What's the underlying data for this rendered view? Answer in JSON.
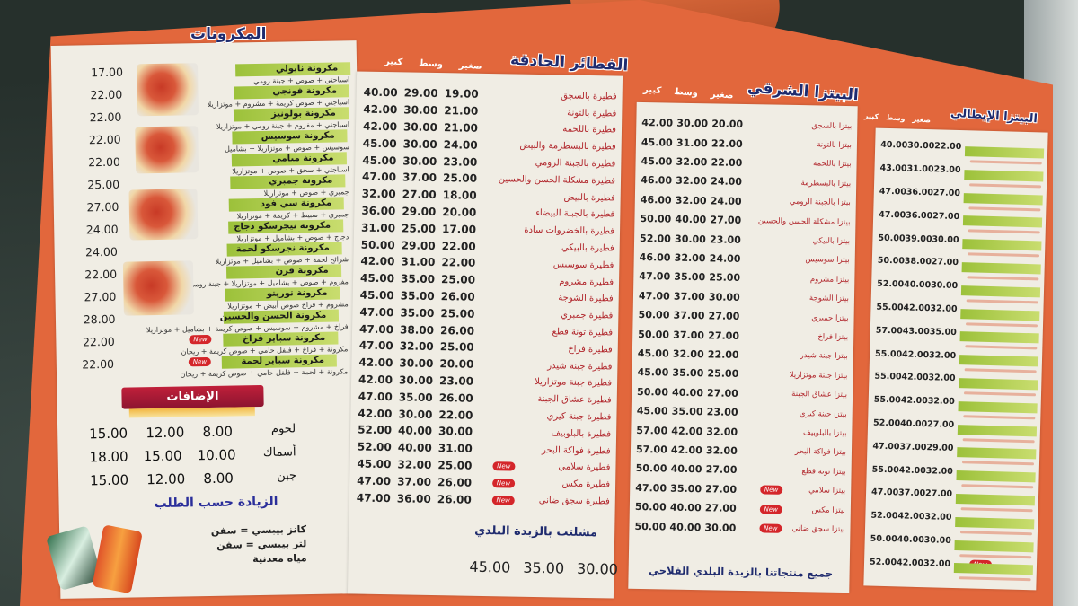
{
  "pasta": {
    "title": "المكرونات",
    "items": [
      {
        "name": "مكرونة نابولي",
        "desc": "اسباجتي + صوص + جبنة رومي",
        "price": "17.00"
      },
      {
        "name": "مكرونة فونجي",
        "desc": "اسباجتي + صوص كريمة + مشروم + موتزاريلا",
        "price": "22.00"
      },
      {
        "name": "مكرونة بولونيز",
        "desc": "اسباجتي + مفروم + جبنة رومي + موتزاريلا",
        "price": "22.00"
      },
      {
        "name": "مكرونة سوسيس",
        "desc": "سوسيس + صوص + موتزاريلا + بشاميل",
        "price": "22.00"
      },
      {
        "name": "مكرونة ميامي",
        "desc": "اسباجتي + سجق + صوص + موتزاريلا",
        "price": "22.00"
      },
      {
        "name": "مكرونة جمبري",
        "desc": "جمبري + صوص + موتزاريلا",
        "price": "25.00"
      },
      {
        "name": "مكرونة سي فود",
        "desc": "جمبري + سبيط + كريمة + موتزاريلا",
        "price": "27.00"
      },
      {
        "name": "مكرونة نيجرسكو دجاج",
        "desc": "دجاج + صوص + بشاميل + موتزاريلا",
        "price": "24.00"
      },
      {
        "name": "مكرونة نجرسكو لحمة",
        "desc": "شرائح لحمة + صوص + بشاميل + موتزاريلا",
        "price": "24.00"
      },
      {
        "name": "مكرونة فرن",
        "desc": "مفروم + صوص + بشاميل + موتزاريلا + جبنة رومي",
        "price": "22.00"
      },
      {
        "name": "مكرونة توريتو",
        "desc": "مشروم + فراخ صوص أبيض + موتزاريلا",
        "price": "27.00"
      },
      {
        "name": "مكرونة الحسن والحسين",
        "desc": "فراخ + مشروم + سوسيس + صوص كريمة + بشاميل + موتزاريلا",
        "price": "28.00"
      },
      {
        "name": "مكرونة سباير فراخ",
        "desc": "مكرونة + فراخ + فلفل حامي + صوص كريمة + ريحان",
        "price": "22.00",
        "new": "New"
      },
      {
        "name": "مكرونة سباير لحمة",
        "desc": "مكرونة + لحمة + فلفل حامي + صوص كريمة + ريحان",
        "price": "22.00",
        "new": "New"
      }
    ]
  },
  "additions": {
    "title": "الإضافات",
    "items": [
      {
        "name": "لحوم",
        "prices": [
          "8.00",
          "12.00",
          "15.00"
        ]
      },
      {
        "name": "أسماك",
        "prices": [
          "10.00",
          "15.00",
          "18.00"
        ]
      },
      {
        "name": "جبن",
        "prices": [
          "8.00",
          "12.00",
          "15.00"
        ]
      }
    ],
    "note": "الزيادة حسب الطلب",
    "drinks": [
      "كانز بيبسي = سفن",
      "لتر بيبسي = سفن",
      "مياه معدنية"
    ]
  },
  "feteer": {
    "title": "الفطائر الحادقة",
    "cols": [
      "صغير",
      "وسط",
      "كبير"
    ],
    "items": [
      {
        "name": "فطيرة بالسجق",
        "p": [
          "19.00",
          "29.00",
          "40.00"
        ]
      },
      {
        "name": "فطيرة بالتونة",
        "p": [
          "21.00",
          "30.00",
          "42.00"
        ]
      },
      {
        "name": "فطيرة باللحمة",
        "p": [
          "21.00",
          "30.00",
          "42.00"
        ]
      },
      {
        "name": "فطيرة بالبسطرمة والبيض",
        "p": [
          "24.00",
          "30.00",
          "45.00"
        ]
      },
      {
        "name": "فطيرة بالجبنة الرومي",
        "p": [
          "23.00",
          "30.00",
          "45.00"
        ]
      },
      {
        "name": "فطيرة مشكلة الحسن والحسين",
        "p": [
          "25.00",
          "37.00",
          "47.00"
        ]
      },
      {
        "name": "فطيرة بالبيض",
        "p": [
          "18.00",
          "27.00",
          "32.00"
        ]
      },
      {
        "name": "فطيرة بالجبنة البيضاء",
        "p": [
          "20.00",
          "29.00",
          "36.00"
        ]
      },
      {
        "name": "فطيرة بالخضروات سادة",
        "p": [
          "17.00",
          "25.00",
          "31.00"
        ]
      },
      {
        "name": "فطيرة بالبيكي",
        "p": [
          "22.00",
          "29.00",
          "50.00"
        ]
      },
      {
        "name": "فطيرة سوسيس",
        "p": [
          "22.00",
          "31.00",
          "42.00"
        ]
      },
      {
        "name": "فطيرة مشروم",
        "p": [
          "25.00",
          "35.00",
          "45.00"
        ]
      },
      {
        "name": "فطيرة الشوجة",
        "p": [
          "26.00",
          "35.00",
          "45.00"
        ]
      },
      {
        "name": "فطيرة جمبري",
        "p": [
          "25.00",
          "35.00",
          "47.00"
        ]
      },
      {
        "name": "فطيرة تونة قطع",
        "p": [
          "26.00",
          "38.00",
          "47.00"
        ]
      },
      {
        "name": "فطيرة فراخ",
        "p": [
          "25.00",
          "32.00",
          "47.00"
        ]
      },
      {
        "name": "فطيرة جبنة شيدر",
        "p": [
          "20.00",
          "30.00",
          "42.00"
        ]
      },
      {
        "name": "فطيرة جبنة موتزاريلا",
        "p": [
          "23.00",
          "30.00",
          "42.00"
        ]
      },
      {
        "name": "فطيرة عشاق الجبنة",
        "p": [
          "26.00",
          "35.00",
          "47.00"
        ]
      },
      {
        "name": "فطيرة جبنة كيري",
        "p": [
          "22.00",
          "30.00",
          "42.00"
        ]
      },
      {
        "name": "فطيرة بالبلوبيف",
        "p": [
          "30.00",
          "40.00",
          "52.00"
        ]
      },
      {
        "name": "فطيرة فواكة البحر",
        "p": [
          "31.00",
          "40.00",
          "52.00"
        ]
      },
      {
        "name": "فطيرة سلامي",
        "p": [
          "25.00",
          "32.00",
          "45.00"
        ],
        "new": "New"
      },
      {
        "name": "فطيرة مكس",
        "p": [
          "26.00",
          "37.00",
          "47.00"
        ],
        "new": "New"
      },
      {
        "name": "فطيرة سجق ضاني",
        "p": [
          "26.00",
          "36.00",
          "47.00"
        ],
        "new": "New"
      }
    ],
    "special": {
      "name": "مشلتت بالزبدة البلدي",
      "p": [
        "30.00",
        "35.00",
        "45.00"
      ]
    }
  },
  "sharqi": {
    "title": "البيتزا الشرقي",
    "cols": [
      "صغير",
      "وسط",
      "كبير"
    ],
    "items": [
      {
        "name": "بيتزا بالسجق",
        "p": [
          "20.00",
          "30.00",
          "42.00"
        ]
      },
      {
        "name": "بيتزا بالتونة",
        "p": [
          "22.00",
          "31.00",
          "45.00"
        ]
      },
      {
        "name": "بيتزا باللحمة",
        "p": [
          "22.00",
          "32.00",
          "45.00"
        ]
      },
      {
        "name": "بيتزا بالبسطرمة",
        "p": [
          "24.00",
          "32.00",
          "46.00"
        ]
      },
      {
        "name": "بيتزا بالجبنة الرومي",
        "p": [
          "24.00",
          "32.00",
          "46.00"
        ]
      },
      {
        "name": "بيتزا مشكلة الحسن والحسين",
        "p": [
          "27.00",
          "40.00",
          "50.00"
        ]
      },
      {
        "name": "بيتزا بالبيكي",
        "p": [
          "23.00",
          "30.00",
          "52.00"
        ]
      },
      {
        "name": "بيتزا سوسيس",
        "p": [
          "24.00",
          "32.00",
          "46.00"
        ]
      },
      {
        "name": "بيتزا مشروم",
        "p": [
          "25.00",
          "35.00",
          "47.00"
        ]
      },
      {
        "name": "بيتزا الشوجة",
        "p": [
          "30.00",
          "37.00",
          "47.00"
        ]
      },
      {
        "name": "بيتزا جمبري",
        "p": [
          "27.00",
          "37.00",
          "50.00"
        ]
      },
      {
        "name": "بيتزا فراخ",
        "p": [
          "27.00",
          "37.00",
          "50.00"
        ]
      },
      {
        "name": "بيتزا جبنة شيدر",
        "p": [
          "22.00",
          "32.00",
          "45.00"
        ]
      },
      {
        "name": "بيتزا جبنة موتزاريلا",
        "p": [
          "25.00",
          "35.00",
          "45.00"
        ]
      },
      {
        "name": "بيتزا عشاق الجبنة",
        "p": [
          "27.00",
          "40.00",
          "50.00"
        ]
      },
      {
        "name": "بيتزا جبنة كيري",
        "p": [
          "23.00",
          "35.00",
          "45.00"
        ]
      },
      {
        "name": "بيتزا بالبلوبيف",
        "p": [
          "32.00",
          "42.00",
          "57.00"
        ]
      },
      {
        "name": "بيتزا فواكة البحر",
        "p": [
          "32.00",
          "42.00",
          "57.00"
        ]
      },
      {
        "name": "بيتزا تونة قطع",
        "p": [
          "27.00",
          "40.00",
          "50.00"
        ]
      },
      {
        "name": "بيتزا سلامي",
        "p": [
          "27.00",
          "35.00",
          "47.00"
        ],
        "new": "New"
      },
      {
        "name": "بيتزا مكس",
        "p": [
          "27.00",
          "40.00",
          "50.00"
        ],
        "new": "New"
      },
      {
        "name": "بيتزا سجق ضاني",
        "p": [
          "30.00",
          "40.00",
          "50.00"
        ],
        "new": "New"
      }
    ],
    "footer": "جميع منتجاتنا بالزبدة البلدي الفلاحي"
  },
  "italian": {
    "title": "البيتزا الإيطالي",
    "cols": [
      "صغير",
      "وسط",
      "كبير"
    ],
    "items": [
      {
        "p": [
          "22.00",
          "30.00",
          "40.00"
        ]
      },
      {
        "p": [
          "23.00",
          "31.00",
          "43.00"
        ]
      },
      {
        "p": [
          "27.00",
          "36.00",
          "47.00"
        ]
      },
      {
        "p": [
          "27.00",
          "36.00",
          "47.00"
        ]
      },
      {
        "p": [
          "30.00",
          "39.00",
          "50.00"
        ]
      },
      {
        "p": [
          "27.00",
          "38.00",
          "50.00"
        ]
      },
      {
        "p": [
          "30.00",
          "40.00",
          "52.00"
        ]
      },
      {
        "p": [
          "32.00",
          "42.00",
          "55.00"
        ]
      },
      {
        "p": [
          "35.00",
          "43.00",
          "57.00"
        ]
      },
      {
        "p": [
          "32.00",
          "42.00",
          "55.00"
        ]
      },
      {
        "p": [
          "32.00",
          "42.00",
          "55.00"
        ]
      },
      {
        "p": [
          "32.00",
          "42.00",
          "55.00"
        ]
      },
      {
        "p": [
          "27.00",
          "40.00",
          "52.00"
        ]
      },
      {
        "p": [
          "29.00",
          "37.00",
          "47.00"
        ]
      },
      {
        "p": [
          "32.00",
          "42.00",
          "55.00"
        ]
      },
      {
        "p": [
          "27.00",
          "37.00",
          "47.00"
        ]
      },
      {
        "p": [
          "32.00",
          "42.00",
          "52.00"
        ]
      },
      {
        "p": [
          "30.00",
          "40.00",
          "50.00"
        ]
      },
      {
        "p": [
          "32.00",
          "42.00",
          "52.00"
        ],
        "new": "New"
      }
    ]
  },
  "colors": {
    "board": "#e2673c",
    "panel": "#f0ede4",
    "title": "#1f2b6e",
    "item": "#b0242a",
    "green": "#9cc13a",
    "badge": "#d4262a"
  }
}
